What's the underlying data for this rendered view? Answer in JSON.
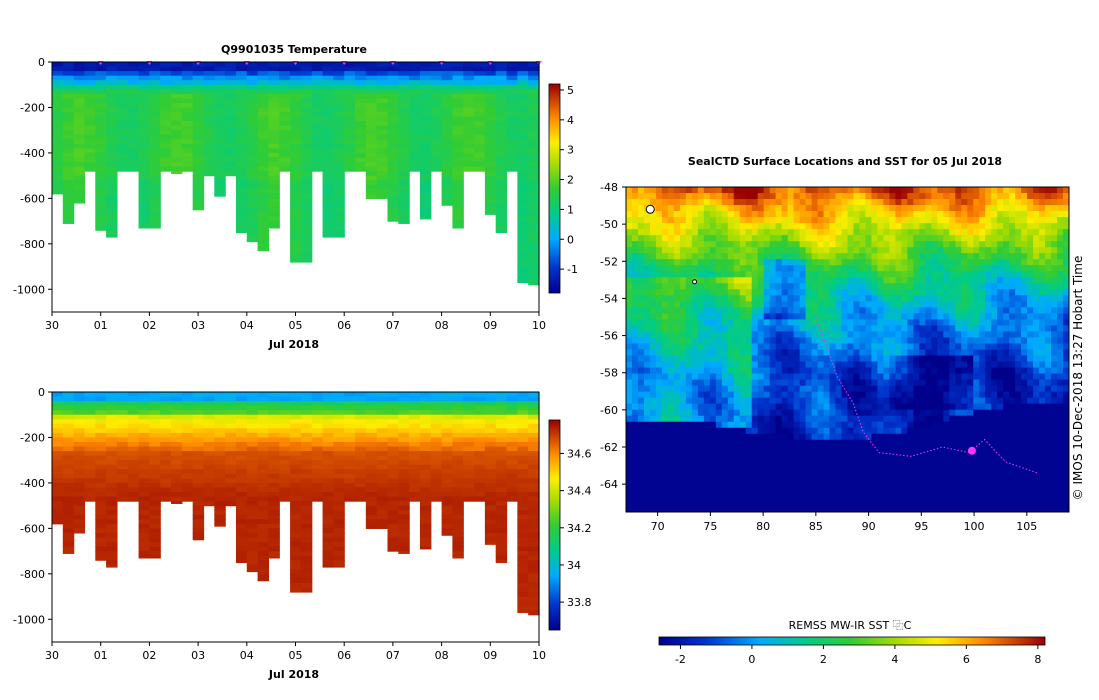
{
  "chart_data": [
    {
      "type": "heatmap",
      "title": "Q9901035  Temperature",
      "xlabel": "Jul 2018",
      "ylabel": "",
      "x_ticks": [
        "30",
        "01",
        "02",
        "03",
        "04",
        "05",
        "06",
        "07",
        "08",
        "09",
        "10"
      ],
      "y_ticks": [
        "0",
        "-200",
        "-400",
        "-600",
        "-800",
        "-1000"
      ],
      "ylim": [
        -1100,
        0
      ],
      "colorbar_ticks": [
        "5",
        "4",
        "3",
        "2",
        "1",
        "0",
        "-1"
      ],
      "colorbar_range": [
        -1.8,
        5.2
      ],
      "profile_max_depth_m": [
        -580,
        -710,
        -620,
        -480,
        -740,
        -770,
        -480,
        -480,
        -730,
        -730,
        -480,
        -490,
        -480,
        -650,
        -500,
        -590,
        -500,
        -750,
        -790,
        -830,
        -730,
        -480,
        -880,
        -880,
        -480,
        -770,
        -770,
        -480,
        -480,
        -600,
        -600,
        -700,
        -710,
        -480,
        -690,
        -480,
        -630,
        -730,
        -480,
        -480,
        -670,
        -750,
        -480,
        -970,
        -980
      ],
      "surface_temp_c": -1.5,
      "deep_temp_c": 1.4
    },
    {
      "type": "heatmap",
      "title": "",
      "xlabel": "Jul 2018",
      "ylabel": "",
      "x_ticks": [
        "30",
        "01",
        "02",
        "03",
        "04",
        "05",
        "06",
        "07",
        "08",
        "09",
        "10"
      ],
      "y_ticks": [
        "0",
        "-200",
        "-400",
        "-600",
        "-800",
        "-1000"
      ],
      "ylim": [
        -1100,
        0
      ],
      "colorbar_ticks": [
        "34.6",
        "34.4",
        "34.2",
        "34",
        "33.8"
      ],
      "colorbar_range": [
        33.65,
        34.78
      ],
      "surface_salinity": 33.9,
      "deep_salinity": 34.72
    },
    {
      "type": "heatmap",
      "title": "SealCTD Surface Locations and SST for 05 Jul 2018",
      "xlabel": "",
      "ylabel": "",
      "x_ticks": [
        "70",
        "75",
        "80",
        "85",
        "90",
        "95",
        "100",
        "105"
      ],
      "y_ticks": [
        "-48",
        "-50",
        "-52",
        "-54",
        "-56",
        "-58",
        "-60",
        "-62",
        "-64"
      ],
      "xlim": [
        67,
        109
      ],
      "ylim": [
        -65.5,
        -48
      ],
      "colorbar_label": "REMSS MW-IR SST ⿻C",
      "colorbar_ticks": [
        "-2",
        "0",
        "2",
        "4",
        "6",
        "8"
      ],
      "colorbar_range": [
        -2.6,
        8.2
      ],
      "side_label": "©  IMOS 10-Dec-2018 13:27 Hobart Time"
    }
  ]
}
